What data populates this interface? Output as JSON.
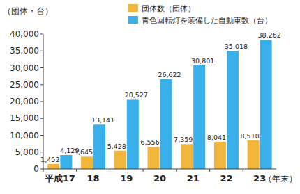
{
  "chart_data": {
    "type": "bar",
    "y_label": "（団体・台）",
    "x_label": "（年末）",
    "categories": [
      "平成17",
      "18",
      "19",
      "20",
      "21",
      "22",
      "23"
    ],
    "series": [
      {
        "name": "団体数（団体）",
        "color": "#f2b63c",
        "values": [
          1452,
          3645,
          5428,
          6556,
          7359,
          8041,
          8510
        ],
        "value_labels": [
          "1,452",
          "3,645",
          "5,428",
          "6,556",
          "7,359",
          "8,041",
          "8,510"
        ]
      },
      {
        "name": "青色回転灯を装備した自動車数（台）",
        "color": "#3ab0ea",
        "values": [
          4129,
          13141,
          20527,
          26622,
          30801,
          35018,
          38262
        ],
        "value_labels": [
          "4,129",
          "13,141",
          "20,527",
          "26,622",
          "30,801",
          "35,018",
          "38,262"
        ]
      }
    ],
    "ylim": [
      0,
      40000
    ],
    "yticks": [
      0,
      {
        "value": 5000,
        "label": "5,000"
      },
      {
        "value": 10000,
        "label": "10,000"
      },
      {
        "value": 15000,
        "label": "15,000"
      },
      {
        "value": 20000,
        "label": "20,000"
      },
      {
        "value": 25000,
        "label": "25,000"
      },
      {
        "value": 30000,
        "label": "30,000"
      },
      {
        "value": 35000,
        "label": "35,000"
      },
      {
        "value": 40000,
        "label": "40,000"
      }
    ],
    "grid": false,
    "legend": "top",
    "data_labels": true
  }
}
